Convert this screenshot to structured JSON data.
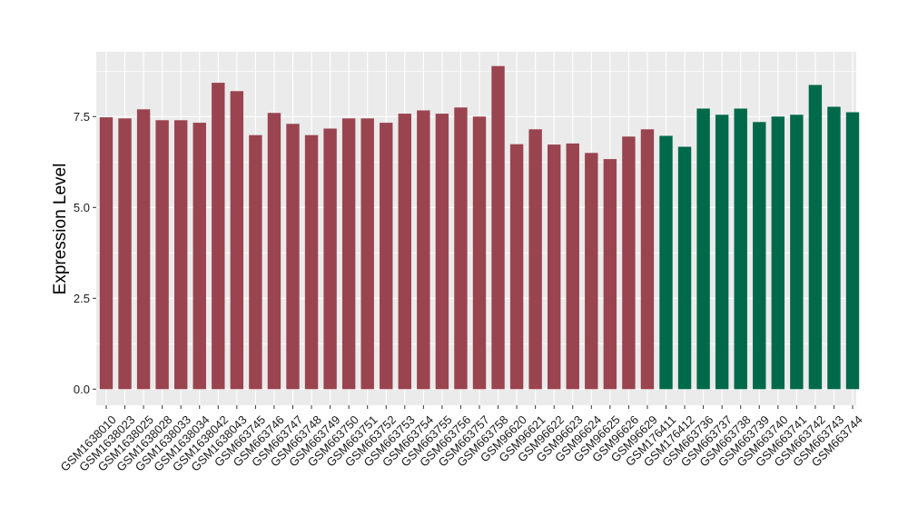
{
  "chart_data": {
    "type": "bar",
    "title": "",
    "xlabel": "",
    "ylabel": "Expression Level",
    "ylim": [
      0,
      8.95
    ],
    "yticks": [
      0.0,
      2.5,
      5.0,
      7.5
    ],
    "ytick_labels": [
      "0.0",
      "2.5",
      "5.0",
      "7.5"
    ],
    "grid": true,
    "legend": "none",
    "colors": {
      "group1": "#9a4450",
      "group2": "#00694a",
      "panel": "#ebebeb",
      "gridline": "#ffffff"
    },
    "categories": [
      "GSM1638010",
      "GSM1638023",
      "GSM1638025",
      "GSM1638028",
      "GSM1638033",
      "GSM1638034",
      "GSM1638042",
      "GSM1638043",
      "GSM663745",
      "GSM663746",
      "GSM663747",
      "GSM663748",
      "GSM663749",
      "GSM663750",
      "GSM663751",
      "GSM663752",
      "GSM663753",
      "GSM663754",
      "GSM663755",
      "GSM663756",
      "GSM663757",
      "GSM663758",
      "GSM96620",
      "GSM96621",
      "GSM96622",
      "GSM96623",
      "GSM96624",
      "GSM96625",
      "GSM96626",
      "GSM96629",
      "GSM176411",
      "GSM176412",
      "GSM663736",
      "GSM663737",
      "GSM663738",
      "GSM663739",
      "GSM663740",
      "GSM663741",
      "GSM663742",
      "GSM663743",
      "GSM663744"
    ],
    "values": [
      7.48,
      7.45,
      7.7,
      7.4,
      7.4,
      7.33,
      8.43,
      8.2,
      6.99,
      7.6,
      7.3,
      6.99,
      7.17,
      7.45,
      7.45,
      7.33,
      7.58,
      7.67,
      7.58,
      7.75,
      7.5,
      8.89,
      6.74,
      7.15,
      6.73,
      6.76,
      6.5,
      6.33,
      6.95,
      7.15,
      6.97,
      6.67,
      7.72,
      7.55,
      7.72,
      7.35,
      7.5,
      7.55,
      8.37,
      7.77,
      7.62
    ],
    "groups": [
      "group1",
      "group1",
      "group1",
      "group1",
      "group1",
      "group1",
      "group1",
      "group1",
      "group1",
      "group1",
      "group1",
      "group1",
      "group1",
      "group1",
      "group1",
      "group1",
      "group1",
      "group1",
      "group1",
      "group1",
      "group1",
      "group1",
      "group1",
      "group1",
      "group1",
      "group1",
      "group1",
      "group1",
      "group1",
      "group1",
      "group2",
      "group2",
      "group2",
      "group2",
      "group2",
      "group2",
      "group2",
      "group2",
      "group2",
      "group2",
      "group2"
    ]
  }
}
